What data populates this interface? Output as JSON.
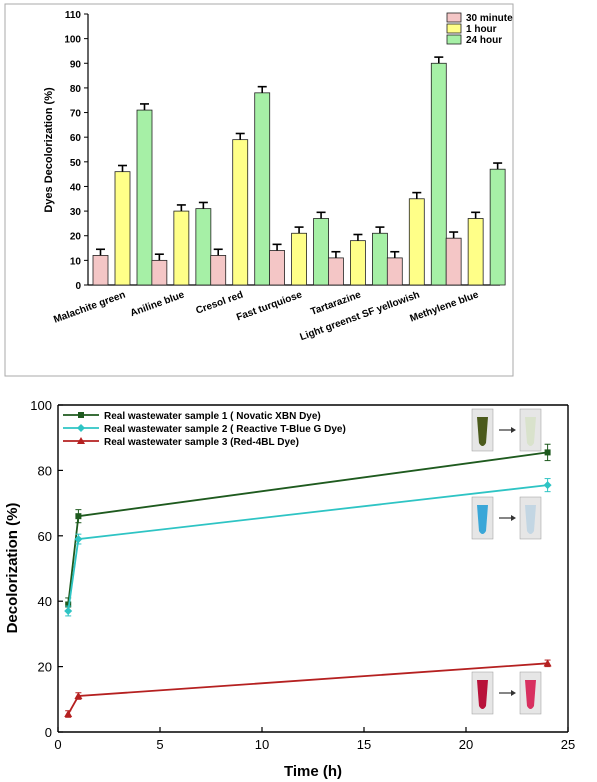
{
  "chart_data": [
    {
      "type": "bar",
      "ylabel": "Dyes Decolorization (%)",
      "ylim": [
        0,
        110
      ],
      "yticks": [
        0,
        10,
        20,
        30,
        40,
        50,
        60,
        70,
        80,
        90,
        100,
        110
      ],
      "categories": [
        "Malachite green",
        "Aniline blue",
        "Cresol red",
        "Fast turquiose",
        "Tartarazine",
        "Light greenst SF yellowish",
        "Methylene blue"
      ],
      "legend_position": "top-right",
      "series": [
        {
          "name": "30 minute",
          "color": "#f4c6c6",
          "values": [
            12,
            10,
            12,
            14,
            11,
            11,
            19
          ],
          "errors": [
            2.5,
            2.5,
            2.5,
            2.5,
            2.5,
            2.5,
            2.5
          ]
        },
        {
          "name": "1 hour",
          "color": "#ffff88",
          "values": [
            46,
            30,
            59,
            21,
            18,
            35,
            27
          ],
          "errors": [
            2.5,
            2.5,
            2.5,
            2.5,
            2.5,
            2.5,
            2.5
          ]
        },
        {
          "name": "24 hour",
          "color": "#a6f0a6",
          "values": [
            71,
            31,
            78,
            27,
            21,
            90,
            47
          ],
          "errors": [
            2.5,
            2.5,
            2.5,
            2.5,
            2.5,
            2.5,
            2.5
          ]
        }
      ]
    },
    {
      "type": "line",
      "xlabel": "Time (h)",
      "ylabel": "Decolorization (%)",
      "xlim": [
        0,
        25
      ],
      "ylim": [
        0,
        100
      ],
      "xticks": [
        0,
        5,
        10,
        15,
        20,
        25
      ],
      "yticks": [
        0,
        20,
        40,
        60,
        80,
        100
      ],
      "legend_position": "top-left",
      "series": [
        {
          "name": "Real wastewater sample 1 ( Novatic XBN Dye)",
          "color": "#1e5a1e",
          "marker": "square",
          "x": [
            0.5,
            1,
            24
          ],
          "y": [
            39,
            66,
            85.5
          ],
          "errors": [
            2,
            2,
            2.5
          ]
        },
        {
          "name": "Real wastewater sample 2 ( Reactive T-Blue G Dye)",
          "color": "#2ec4c4",
          "marker": "diamond",
          "x": [
            0.5,
            1,
            24
          ],
          "y": [
            37,
            59,
            75.5
          ],
          "errors": [
            1.5,
            1.5,
            2
          ]
        },
        {
          "name": "Real wastewater sample 3 (Red-4BL Dye)",
          "color": "#b52020",
          "marker": "triangle",
          "x": [
            0.5,
            1,
            24
          ],
          "y": [
            5.5,
            11,
            21
          ],
          "errors": [
            1,
            1,
            1
          ]
        }
      ]
    }
  ],
  "insets": [
    {
      "name": "green-dye-tubes",
      "before_color": "#4b5a1c",
      "after_color": "#d9e2cc"
    },
    {
      "name": "blue-dye-tubes",
      "before_color": "#3aa7d8",
      "after_color": "#c3d6e3"
    },
    {
      "name": "red-dye-tubes",
      "before_color": "#b8123a",
      "after_color": "#d83060"
    }
  ]
}
